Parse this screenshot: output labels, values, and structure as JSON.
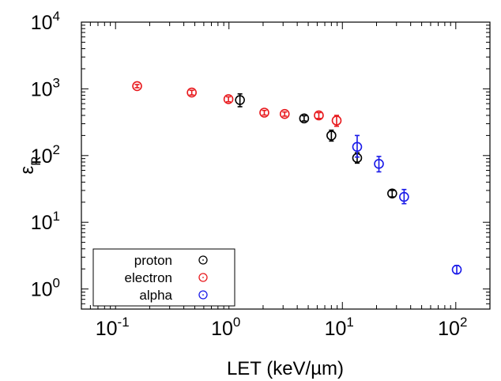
{
  "chart_data": {
    "type": "scatter",
    "xlabel": "LET (keV/µm)",
    "ylabel": "ε",
    "ylabel_subscript": "R",
    "xscale": "log",
    "yscale": "log",
    "xlim": [
      0.05,
      200
    ],
    "ylim": [
      0.5,
      10000
    ],
    "x_ticks": [
      {
        "value": 0.1,
        "base": "10",
        "exp": "-1"
      },
      {
        "value": 1,
        "base": "10",
        "exp": "0"
      },
      {
        "value": 10,
        "base": "10",
        "exp": "1"
      },
      {
        "value": 100,
        "base": "10",
        "exp": "2"
      }
    ],
    "y_ticks": [
      {
        "value": 1,
        "base": "10",
        "exp": "0"
      },
      {
        "value": 10,
        "base": "10",
        "exp": "1"
      },
      {
        "value": 100,
        "base": "10",
        "exp": "2"
      },
      {
        "value": 1000,
        "base": "10",
        "exp": "3"
      },
      {
        "value": 10000,
        "base": "10",
        "exp": "4"
      }
    ],
    "grid": false,
    "legend_position": "bottom-left",
    "series": [
      {
        "name": "proton",
        "color": "#000000",
        "points": [
          {
            "x": 1.25,
            "y": 680,
            "ylo": 540,
            "yhi": 840
          },
          {
            "x": 4.6,
            "y": 360,
            "ylo": 330,
            "yhi": 395
          },
          {
            "x": 8.0,
            "y": 200,
            "ylo": 165,
            "yhi": 240
          },
          {
            "x": 13.5,
            "y": 92,
            "ylo": 77,
            "yhi": 110
          },
          {
            "x": 27.5,
            "y": 27,
            "ylo": 24,
            "yhi": 30
          }
        ]
      },
      {
        "name": "electron",
        "color": "#e8191d",
        "points": [
          {
            "x": 0.155,
            "y": 1100,
            "ylo": 1040,
            "yhi": 1160
          },
          {
            "x": 0.47,
            "y": 880,
            "ylo": 810,
            "yhi": 950
          },
          {
            "x": 0.99,
            "y": 700,
            "ylo": 640,
            "yhi": 760
          },
          {
            "x": 2.05,
            "y": 440,
            "ylo": 405,
            "yhi": 475
          },
          {
            "x": 3.1,
            "y": 420,
            "ylo": 390,
            "yhi": 450
          },
          {
            "x": 6.2,
            "y": 400,
            "ylo": 360,
            "yhi": 440
          },
          {
            "x": 8.9,
            "y": 335,
            "ylo": 275,
            "yhi": 400
          }
        ]
      },
      {
        "name": "alpha",
        "color": "#1a1ae8",
        "points": [
          {
            "x": 13.5,
            "y": 135,
            "ylo": 95,
            "yhi": 200
          },
          {
            "x": 21.0,
            "y": 75,
            "ylo": 57,
            "yhi": 97
          },
          {
            "x": 35.0,
            "y": 24,
            "ylo": 19,
            "yhi": 31
          },
          {
            "x": 102,
            "y": 1.95,
            "ylo": 1.7,
            "yhi": 2.25
          }
        ]
      }
    ]
  }
}
